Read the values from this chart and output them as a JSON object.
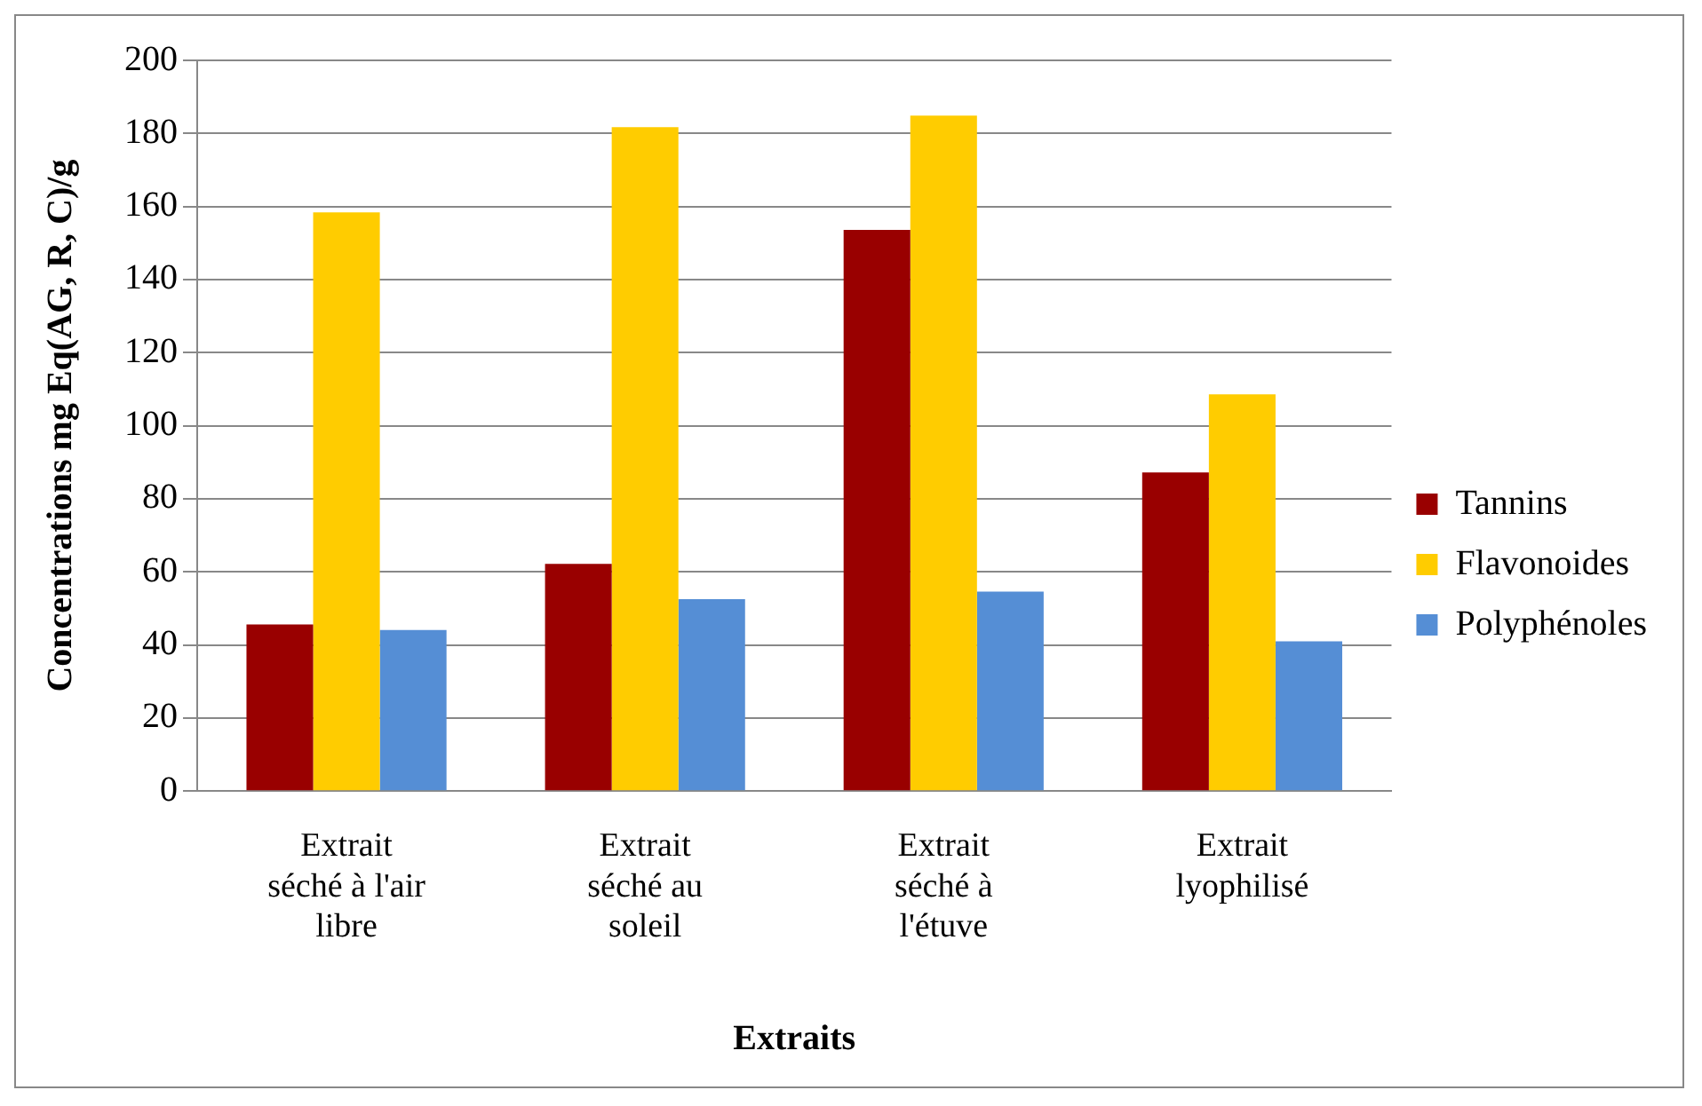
{
  "chart_data": {
    "type": "bar",
    "xlabel": "Extraits",
    "ylabel": "Concentrations mg Eq(AG, R, C)/g",
    "categories": [
      "Extrait séché à l'air libre",
      "Extrait séché au soleil",
      "Extrait séché à l'étuve",
      "Extrait lyophilisé"
    ],
    "series": [
      {
        "name": "Tannins",
        "color": "#990000",
        "values": [
          45.6,
          62.2,
          153.6,
          87.2
        ]
      },
      {
        "name": "Flavonoides",
        "color": "#ffcc00",
        "values": [
          158.4,
          181.7,
          184.9,
          108.6
        ]
      },
      {
        "name": "Polyphénoles",
        "color": "#558ed5",
        "values": [
          44.1,
          52.5,
          54.6,
          41.0
        ]
      }
    ],
    "ylim": [
      0,
      200
    ],
    "yticks": [
      0,
      20,
      40,
      60,
      80,
      100,
      120,
      140,
      160,
      180,
      200
    ],
    "grid": "y",
    "legend": "right"
  }
}
